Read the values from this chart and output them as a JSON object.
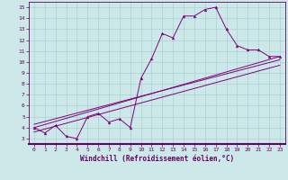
{
  "xlabel": "Windchill (Refroidissement éolien,°C)",
  "bg_color": "#cce8e8",
  "line_color": "#800080",
  "grid_color": "#aad0d0",
  "xlim": [
    -0.5,
    23.5
  ],
  "ylim": [
    2.5,
    15.5
  ],
  "xticks": [
    0,
    1,
    2,
    3,
    4,
    5,
    6,
    7,
    8,
    9,
    10,
    11,
    12,
    13,
    14,
    15,
    16,
    17,
    18,
    19,
    20,
    21,
    22,
    23
  ],
  "yticks": [
    3,
    4,
    5,
    6,
    7,
    8,
    9,
    10,
    11,
    12,
    13,
    14,
    15
  ],
  "jagged_x": [
    0,
    1,
    2,
    3,
    4,
    5,
    6,
    7,
    8,
    9,
    10,
    11,
    12,
    13,
    14,
    15,
    16,
    17,
    18,
    19,
    20,
    21,
    22,
    23
  ],
  "jagged_y": [
    4.0,
    3.5,
    4.2,
    3.2,
    3.0,
    5.0,
    5.3,
    4.5,
    4.8,
    4.0,
    8.5,
    10.3,
    12.6,
    12.2,
    14.2,
    14.2,
    14.8,
    15.0,
    13.0,
    11.5,
    11.1,
    11.1,
    10.5,
    10.5
  ],
  "line1_x": [
    0,
    23
  ],
  "line1_y": [
    4.0,
    10.5
  ],
  "line2_x": [
    0,
    23
  ],
  "line2_y": [
    3.6,
    9.7
  ],
  "line3_x": [
    0,
    23
  ],
  "line3_y": [
    4.3,
    10.2
  ]
}
